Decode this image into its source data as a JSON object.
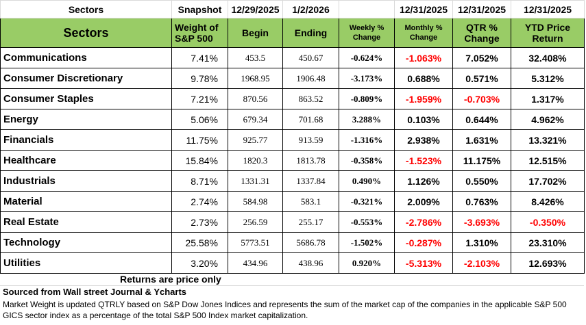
{
  "table": {
    "top_row": [
      "Sectors",
      "Snapshot",
      "12/29/2025",
      "1/2/2026",
      null,
      "12/31/2025",
      "12/31/2025",
      "12/31/2025"
    ],
    "header": [
      "Sectors",
      "Weight of S&P 500",
      "Begin",
      "Ending",
      "Weekly % Change",
      "Monthly % Change",
      "QTR % Change",
      "YTD Price Return"
    ],
    "header_color": "#99cc66",
    "negative_color": "#ff0000",
    "rows": [
      [
        "Communications",
        "7.41%",
        "453.5",
        "450.67",
        "-0.624%",
        "-1.063%",
        "7.052%",
        "32.408%"
      ],
      [
        "Consumer Discretionary",
        "9.78%",
        "1968.95",
        "1906.48",
        "-3.173%",
        "0.688%",
        "0.571%",
        "5.312%"
      ],
      [
        "Consumer Staples",
        "7.21%",
        "870.56",
        "863.52",
        "-0.809%",
        "-1.959%",
        "-0.703%",
        "1.317%"
      ],
      [
        "Energy",
        "5.06%",
        "679.34",
        "701.68",
        "3.288%",
        "0.103%",
        "0.644%",
        "4.962%"
      ],
      [
        "Financials",
        "11.75%",
        "925.77",
        "913.59",
        "-1.316%",
        "2.938%",
        "1.631%",
        "13.321%"
      ],
      [
        "Healthcare",
        "15.84%",
        "1820.3",
        "1813.78",
        "-0.358%",
        "-1.523%",
        "11.175%",
        "12.515%"
      ],
      [
        "Industrials",
        "8.71%",
        "1331.31",
        "1337.84",
        "0.490%",
        "1.126%",
        "0.550%",
        "17.702%"
      ],
      [
        "Material",
        "2.74%",
        "584.98",
        "583.1",
        "-0.321%",
        "2.009%",
        "0.763%",
        "8.426%"
      ],
      [
        "Real Estate",
        "2.73%",
        "256.59",
        "255.17",
        "-0.553%",
        "-2.786%",
        "-3.693%",
        "-0.350%"
      ],
      [
        "Technology",
        "25.58%",
        "5773.51",
        "5686.78",
        "-1.502%",
        "-0.287%",
        "1.310%",
        "23.310%"
      ],
      [
        "Utilities",
        "3.20%",
        "434.96",
        "438.96",
        "0.920%",
        "-5.313%",
        "-2.103%",
        "12.693%"
      ]
    ]
  },
  "footer": {
    "price_note": "Returns are price only",
    "source": "Sourced from Wall street Journal & Ycharts",
    "weight_note": "Market Weight is updated QTRLY based on S&P Dow Jones Indices and represents the sum of the market cap of the companies in the applicable S&P 500 GICS sector index as a percentage of the total S&P 500 Index market capitalization."
  }
}
